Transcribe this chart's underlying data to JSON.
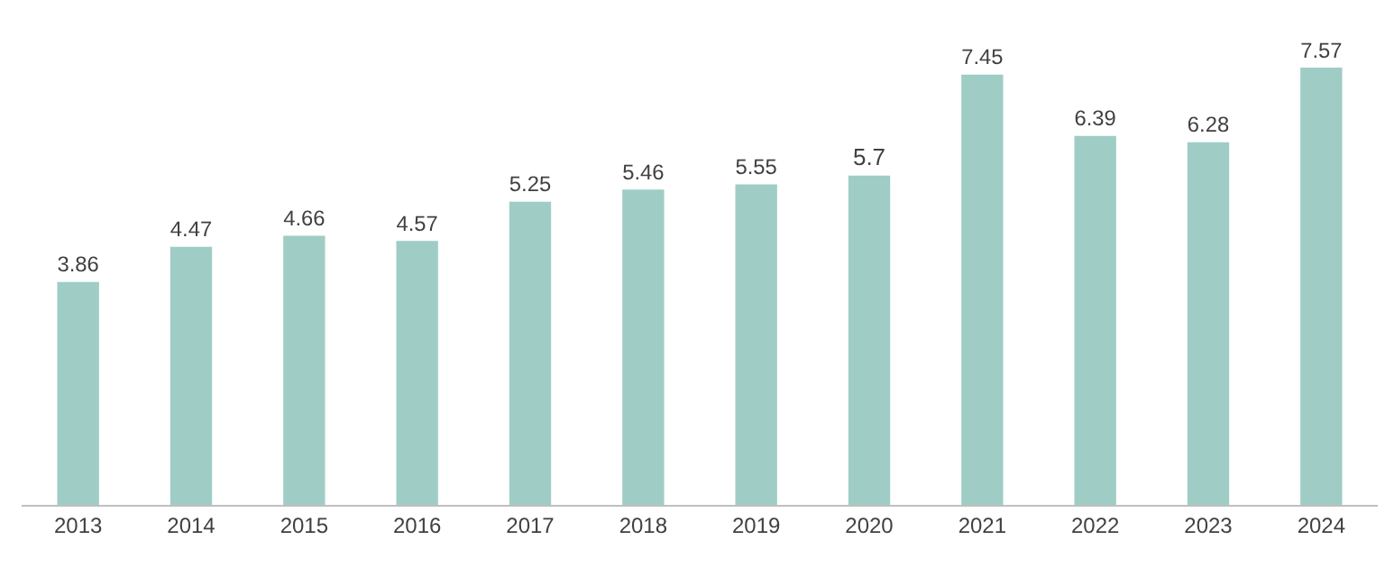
{
  "chart_data": {
    "type": "bar",
    "categories": [
      "2013",
      "2014",
      "2015",
      "2016",
      "2017",
      "2018",
      "2019",
      "2020",
      "2021",
      "2022",
      "2023",
      "2024"
    ],
    "values": [
      3.86,
      4.47,
      4.66,
      4.57,
      5.25,
      5.46,
      5.55,
      5.7,
      7.45,
      6.39,
      6.28,
      7.57
    ],
    "color": "#9fcdc6",
    "data_labels": true,
    "legend": false,
    "tick_labels": "x"
  }
}
